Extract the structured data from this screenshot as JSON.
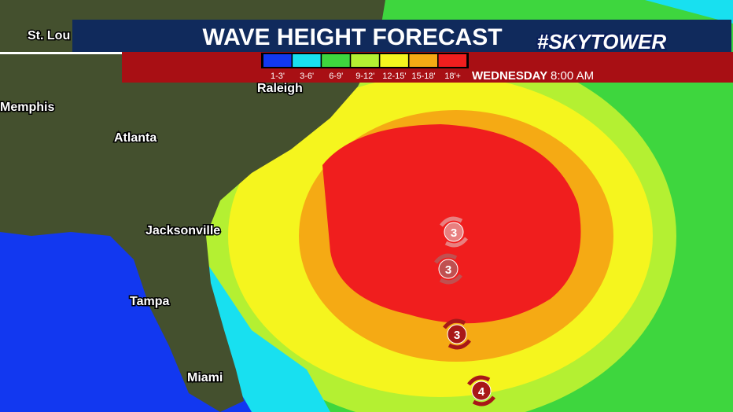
{
  "header": {
    "title": "WAVE HEIGHT FORECAST",
    "brand": "#SKYTOWER"
  },
  "legend": {
    "items": [
      {
        "label": "1-3'",
        "color": "#1238f0"
      },
      {
        "label": "3-6'",
        "color": "#18e0f0"
      },
      {
        "label": "6-9'",
        "color": "#3ed63e"
      },
      {
        "label": "9-12'",
        "color": "#b4f032"
      },
      {
        "label": "12-15'",
        "color": "#f5f51e"
      },
      {
        "label": "15-18'",
        "color": "#f5aa14"
      },
      {
        "label": "18'+",
        "color": "#f01e1e"
      }
    ]
  },
  "timestamp": {
    "day": "WEDNESDAY",
    "time": "8:00 AM"
  },
  "cities": [
    "St. Lou",
    "Memphis",
    "Raleigh",
    "Atlanta",
    "Jacksonville",
    "Tampa",
    "Miami"
  ],
  "storms": [
    "3",
    "3",
    "3",
    "4"
  ]
}
